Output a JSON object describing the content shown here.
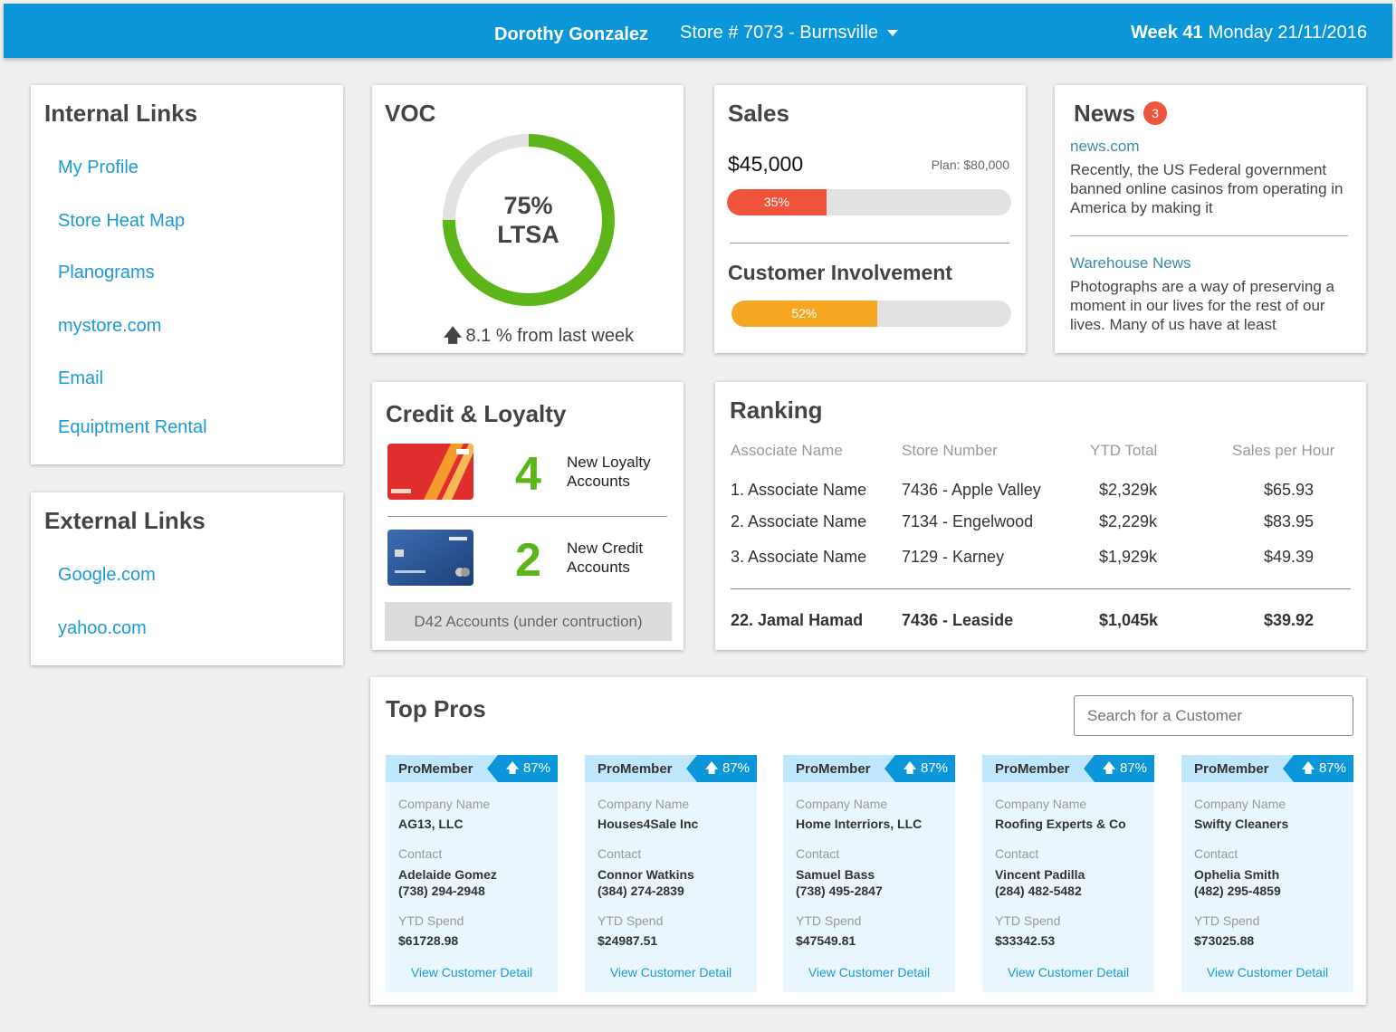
{
  "header": {
    "user": "Dorothy Gonzalez",
    "store": "Store # 7073 - Burnsville",
    "week": "Week 41",
    "date": "Monday 21/11/2016"
  },
  "internal_links": {
    "title": "Internal Links",
    "items": [
      "My Profile",
      "Store Heat Map",
      "Planograms",
      "mystore.com",
      "Email",
      "Equiptment Rental"
    ]
  },
  "external_links": {
    "title": "External Links",
    "items": [
      "Google.com",
      "yahoo.com"
    ]
  },
  "voc": {
    "title": "VOC",
    "percent": "75%",
    "label": "LTSA",
    "value": 0.75,
    "delta": "8.1 % from last week",
    "ring_color": "#5db51a",
    "track_color": "#e2e2e2"
  },
  "sales": {
    "title": "Sales",
    "amount": "$45,000",
    "plan": "Plan: $80,000",
    "progress_label": "35%",
    "progress": 0.35,
    "progress_color": "#f0553b",
    "involvement_title": "Customer Involvement",
    "involvement_label": "52%",
    "involvement": 0.52,
    "involvement_color": "#f5a623"
  },
  "news": {
    "title": "News",
    "badge": "3",
    "items": [
      {
        "source": "news.com",
        "text": "Recently, the US Federal government banned online casinos from operating in America by making it"
      },
      {
        "source": "Warehouse News",
        "text": "Photographs are a way of preserving a moment in our lives for the rest of our lives. Many of us have at least"
      }
    ]
  },
  "credit": {
    "title": "Credit & Loyalty",
    "loyalty_count": "4",
    "loyalty_label": "New Loyalty Accounts",
    "credit_count": "2",
    "credit_label": "New Credit Accounts",
    "d42": "D42 Accounts (under contruction)",
    "loyalty_card_icon": "loyalty-card-image",
    "credit_card_icon": "credit-card-image"
  },
  "ranking": {
    "title": "Ranking",
    "columns": [
      "Associate Name",
      "Store Number",
      "YTD Total",
      "Sales per Hour"
    ],
    "rows": [
      [
        "1. Associate Name",
        "7436 - Apple Valley",
        "$2,329k",
        "$65.93"
      ],
      [
        "2. Associate Name",
        "7134 - Engelwood",
        "$2,229k",
        "$83.95"
      ],
      [
        "3. Associate Name",
        "7129 - Karney",
        "$1,929k",
        "$49.39"
      ]
    ],
    "current": [
      "22. Jamal Hamad",
      "7436 - Leaside",
      "$1,045k",
      "$39.92"
    ]
  },
  "top_pros": {
    "title": "Top Pros",
    "search_placeholder": "Search for a Customer",
    "labels": {
      "company": "Company Name",
      "contact": "Contact",
      "spend": "YTD Spend",
      "detail": "View Customer Detail"
    },
    "cards": [
      {
        "tier": "ProMember",
        "score": "87%",
        "company": "AG13, LLC",
        "contact": "Adelaide Gomez",
        "phone": "(738) 294-2948",
        "spend": "$61728.98"
      },
      {
        "tier": "ProMember",
        "score": "87%",
        "company": "Houses4Sale Inc",
        "contact": "Connor Watkins",
        "phone": "(384) 274-2839",
        "spend": "$24987.51"
      },
      {
        "tier": "ProMember",
        "score": "87%",
        "company": "Home Interriors, LLC",
        "contact": "Samuel Bass",
        "phone": "(738) 495-2847",
        "spend": "$47549.81"
      },
      {
        "tier": "ProMember",
        "score": "87%",
        "company": "Roofing Experts & Co",
        "contact": "Vincent Padilla",
        "phone": "(284) 482-5482",
        "spend": "$33342.53"
      },
      {
        "tier": "ProMember",
        "score": "87%",
        "company": "Swifty Cleaners",
        "contact": "Ophelia Smith",
        "phone": "(482) 295-4859",
        "spend": "$73025.88"
      }
    ]
  }
}
